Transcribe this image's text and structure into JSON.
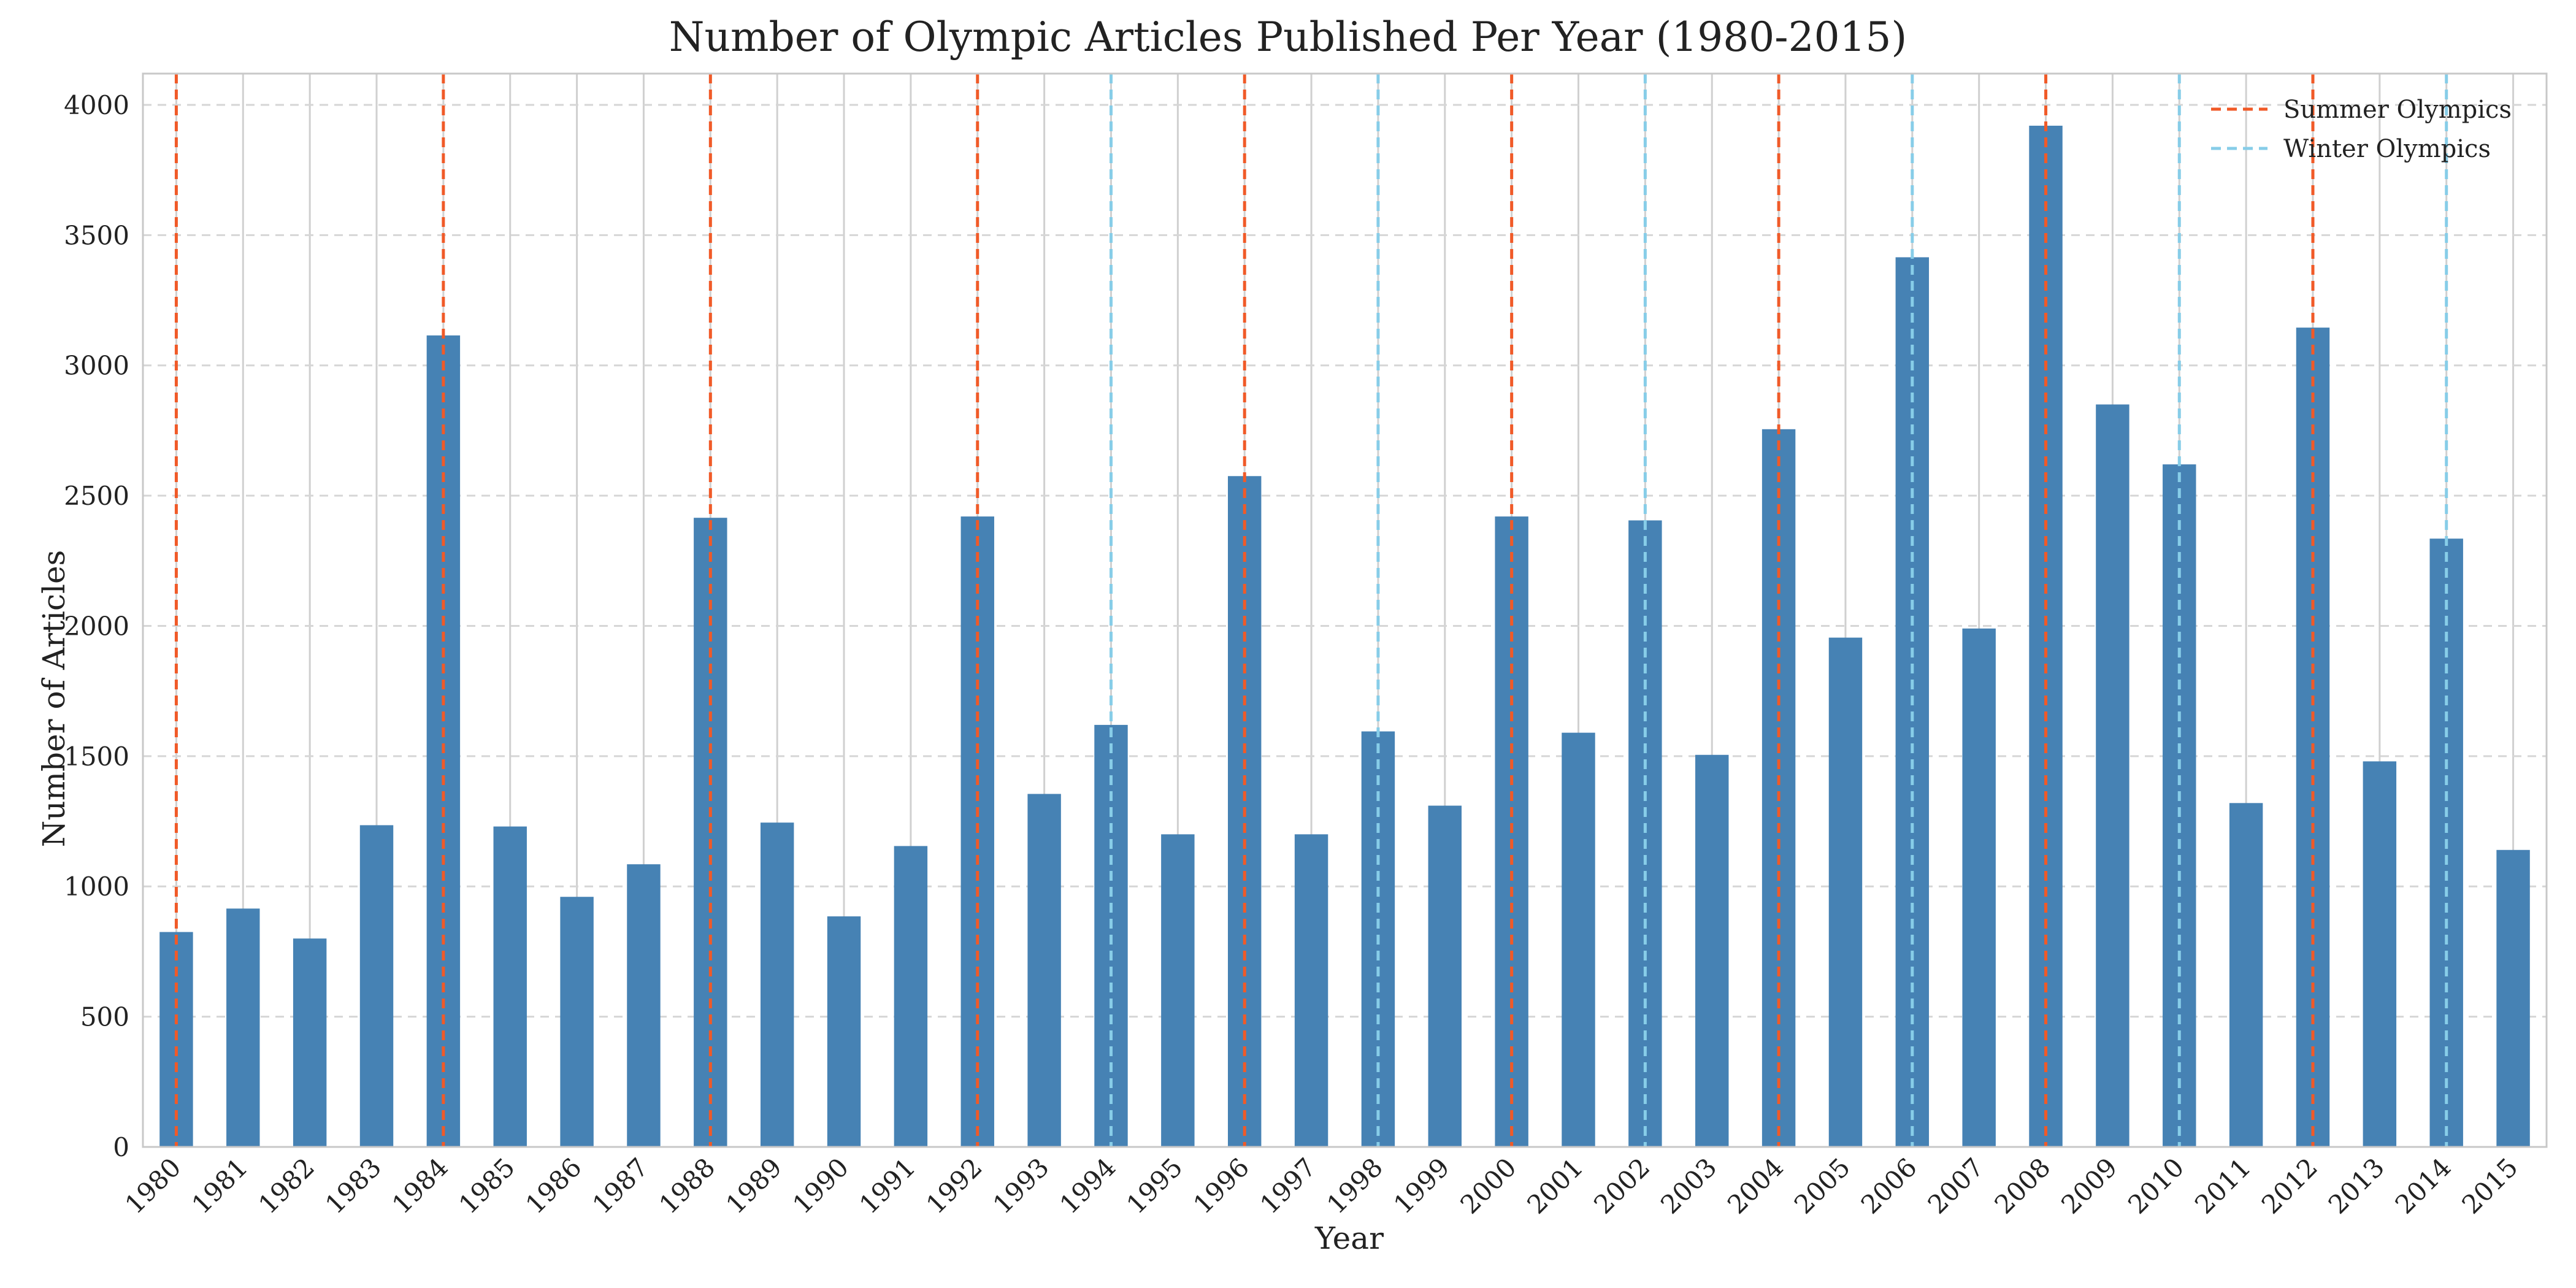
{
  "chart_data": {
    "type": "bar",
    "title": "Number of Olympic Articles Published Per Year (1980-2015)",
    "xlabel": "Year",
    "ylabel": "Number of Articles",
    "ylim": [
      0,
      4120
    ],
    "yticks": [
      0,
      500,
      1000,
      1500,
      2000,
      2500,
      3000,
      3500,
      4000
    ],
    "grid": true,
    "bar_color": "#4682b4",
    "categories": [
      "1980",
      "1981",
      "1982",
      "1983",
      "1984",
      "1985",
      "1986",
      "1987",
      "1988",
      "1989",
      "1990",
      "1991",
      "1992",
      "1993",
      "1994",
      "1995",
      "1996",
      "1997",
      "1998",
      "1999",
      "2000",
      "2001",
      "2002",
      "2003",
      "2004",
      "2005",
      "2006",
      "2007",
      "2008",
      "2009",
      "2010",
      "2011",
      "2012",
      "2013",
      "2014",
      "2015"
    ],
    "values": [
      825,
      915,
      800,
      1235,
      3115,
      1230,
      960,
      1085,
      2415,
      1245,
      885,
      1155,
      2420,
      1355,
      1620,
      1200,
      2575,
      1200,
      1595,
      1310,
      2420,
      1590,
      2405,
      1505,
      2755,
      1955,
      3415,
      1990,
      3920,
      2850,
      2620,
      1320,
      3145,
      1480,
      2335,
      1140
    ],
    "reference_lines": [
      {
        "name": "Summer Olympics",
        "color": "#f05a28",
        "years": [
          "1980",
          "1984",
          "1988",
          "1992",
          "1996",
          "2000",
          "2004",
          "2008",
          "2012"
        ]
      },
      {
        "name": "Winter Olympics",
        "color": "#87cde8",
        "years": [
          "1994",
          "1998",
          "2002",
          "2006",
          "2010",
          "2014"
        ]
      }
    ],
    "legend_position": "top-right"
  }
}
